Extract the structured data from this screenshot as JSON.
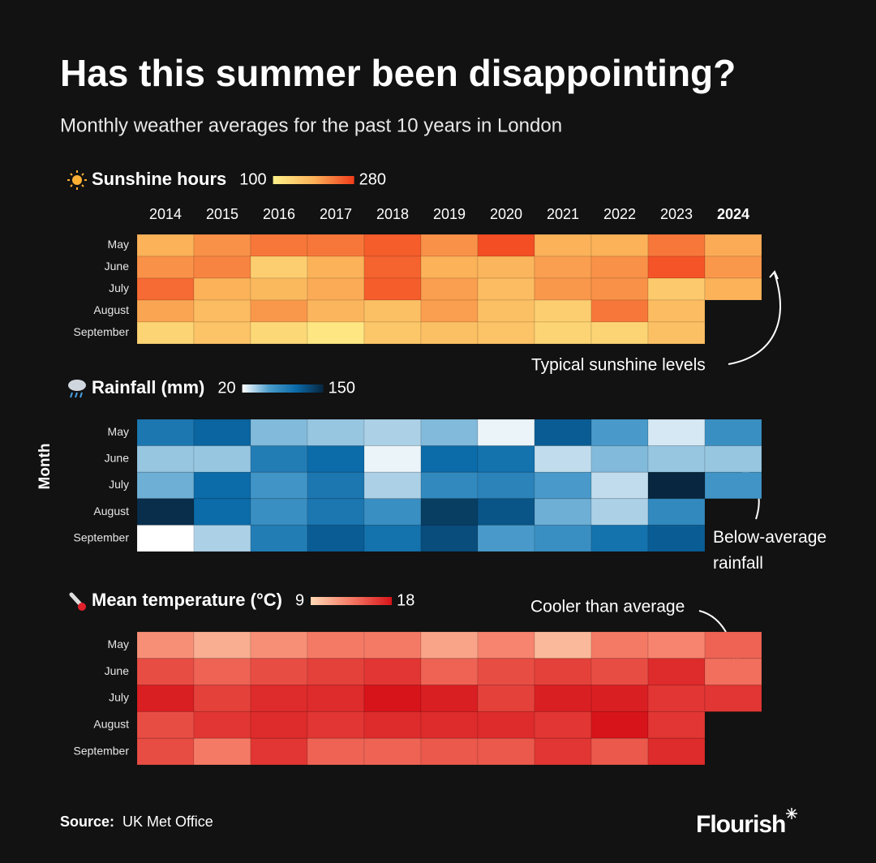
{
  "chart_data": {
    "type": "heatmap",
    "title": "Has this summer been disappointing?",
    "subtitle": "Monthly weather averages for the past 10 years in London",
    "y_label": "Month",
    "x": [
      "2014",
      "2015",
      "2016",
      "2017",
      "2018",
      "2019",
      "2020",
      "2021",
      "2022",
      "2023",
      "2024"
    ],
    "x_bold": [
      10
    ],
    "y": [
      "May",
      "June",
      "July",
      "August",
      "September"
    ],
    "panels": [
      {
        "title": "Sunshine hours",
        "clim": [
          100,
          280
        ],
        "colors": [
          "#fef08a",
          "#fbb259",
          "#f23c1a"
        ],
        "annotation": "Typical sunshine levels",
        "values": [
          [
            190,
            215,
            235,
            235,
            255,
            215,
            266,
            190,
            190,
            235,
            195
          ],
          [
            215,
            225,
            150,
            190,
            250,
            190,
            185,
            205,
            215,
            262,
            210
          ],
          [
            245,
            190,
            180,
            195,
            255,
            205,
            175,
            210,
            215,
            155,
            190
          ],
          [
            200,
            175,
            210,
            185,
            170,
            205,
            170,
            150,
            235,
            175,
            null
          ],
          [
            140,
            165,
            135,
            115,
            160,
            170,
            165,
            140,
            140,
            170,
            null
          ]
        ]
      },
      {
        "title": "Rainfall (mm)",
        "clim": [
          20,
          150
        ],
        "colors": [
          "#ffffff",
          "#4b9ccb",
          "#0a6aa8",
          "#08263f"
        ],
        "annotation": "Below-average rainfall",
        "values": [
          [
            95,
            110,
            50,
            45,
            40,
            50,
            25,
            115,
            65,
            30,
            75
          ],
          [
            45,
            45,
            90,
            105,
            25,
            105,
            100,
            35,
            50,
            45,
            45
          ],
          [
            55,
            105,
            70,
            95,
            40,
            80,
            85,
            65,
            35,
            150,
            70
          ],
          [
            145,
            105,
            75,
            95,
            75,
            135,
            120,
            55,
            40,
            80,
            null
          ],
          [
            20,
            40,
            90,
            115,
            100,
            125,
            65,
            75,
            100,
            115,
            null
          ]
        ]
      },
      {
        "title": "Mean temperature (°C)",
        "clim": [
          9,
          18
        ],
        "colors": [
          "#fdd8b5",
          "#f57a65",
          "#d7141a"
        ],
        "annotation": "Cooler than average",
        "values": [
          [
            12.5,
            11,
            12.5,
            13.5,
            13.5,
            11.5,
            13,
            10.5,
            13.5,
            13,
            14.5
          ],
          [
            15.5,
            14.5,
            15.5,
            16,
            16.5,
            14.5,
            15.5,
            16,
            15.5,
            17,
            14
          ],
          [
            17.5,
            16,
            17,
            17,
            18,
            17.5,
            16,
            17.5,
            17.5,
            16.5,
            16.5
          ],
          [
            15.5,
            16.5,
            17,
            16.5,
            17,
            17,
            17,
            16.5,
            18,
            16.5,
            null
          ],
          [
            15.5,
            13.5,
            16.5,
            14.5,
            14.5,
            15,
            15,
            16.5,
            15,
            17,
            null
          ]
        ]
      }
    ],
    "source_label": "Source:",
    "source": "UK Met Office",
    "brand": "Flourish"
  }
}
